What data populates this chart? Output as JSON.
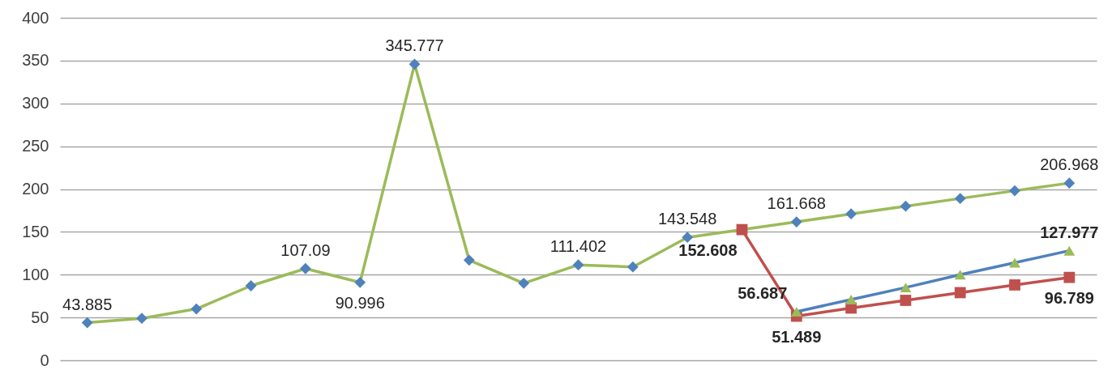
{
  "chart_data": {
    "type": "line",
    "categories": [
      null,
      null,
      null,
      null,
      null,
      null,
      null,
      null,
      null,
      null,
      null,
      null,
      null,
      null,
      null,
      null,
      null,
      null,
      null
    ],
    "series": [
      {
        "color": "#9bbb59",
        "colors": [
          "#4f81bd",
          "#4f81bd",
          "#4f81bd",
          "#4f81bd",
          "#4f81bd",
          "#4f81bd",
          "#4f81bd",
          "#4f81bd",
          "#4f81bd",
          "#4f81bd",
          "#4f81bd",
          "#4f81bd",
          "#4f81bd",
          "#4f81bd",
          "#4f81bd",
          "#4f81bd",
          "#4f81bd",
          "#4f81bd",
          "#4f81bd"
        ],
        "marker": "diamond",
        "values": [
          43.885,
          49,
          60,
          87,
          107.09,
          90.996,
          345.777,
          117,
          90,
          111.402,
          109,
          143.548,
          null,
          161.668,
          171,
          180,
          189,
          198,
          206.968
        ],
        "value_labels": [
          "43.885",
          null,
          null,
          null,
          "107.09",
          "90.996",
          "345.777",
          null,
          null,
          "111.402",
          null,
          "143.548",
          null,
          "161.668",
          null,
          null,
          null,
          null,
          "206.968"
        ]
      },
      {
        "color": "#c0504d",
        "colors": [
          "#c0504d",
          "#c0504d",
          "#c0504d",
          "#c0504d",
          "#c0504d",
          "#c0504d",
          "#c0504d",
          "#c0504d",
          "#c0504d",
          "#c0504d",
          "#c0504d",
          "#c0504d",
          "#c0504d",
          "#c0504d",
          "#c0504d",
          "#c0504d",
          "#c0504d",
          "#c0504d",
          "#c0504d"
        ],
        "marker": "square",
        "values": [
          null,
          null,
          null,
          null,
          null,
          null,
          null,
          null,
          null,
          null,
          null,
          null,
          152.608,
          51.489,
          61,
          70,
          79,
          88,
          96.789
        ],
        "value_labels": [
          null,
          null,
          null,
          null,
          null,
          null,
          null,
          null,
          null,
          null,
          null,
          null,
          "152.608",
          "51.489",
          null,
          null,
          null,
          null,
          "96.789"
        ]
      },
      {
        "color": "#4f81bd",
        "colors": [
          "#9bbb59",
          "#9bbb59",
          "#9bbb59",
          "#9bbb59",
          "#9bbb59",
          "#9bbb59",
          "#9bbb59",
          "#9bbb59",
          "#9bbb59",
          "#9bbb59",
          "#9bbb59",
          "#9bbb59",
          "#9bbb59",
          "#9bbb59",
          "#9bbb59",
          "#9bbb59",
          "#9bbb59",
          "#9bbb59",
          "#9bbb59"
        ],
        "marker": "triangle",
        "values": [
          null,
          null,
          null,
          null,
          null,
          null,
          null,
          null,
          null,
          null,
          null,
          null,
          null,
          56.687,
          71,
          85,
          100,
          114,
          127.977
        ],
        "value_labels": [
          null,
          null,
          null,
          null,
          null,
          null,
          null,
          null,
          null,
          null,
          null,
          null,
          null,
          "56.687",
          null,
          null,
          null,
          null,
          "127.977"
        ]
      }
    ],
    "ylim": [
      0,
      400
    ],
    "yticks": [
      0,
      50,
      100,
      150,
      200,
      250,
      300,
      350,
      400
    ],
    "grid": "y"
  }
}
